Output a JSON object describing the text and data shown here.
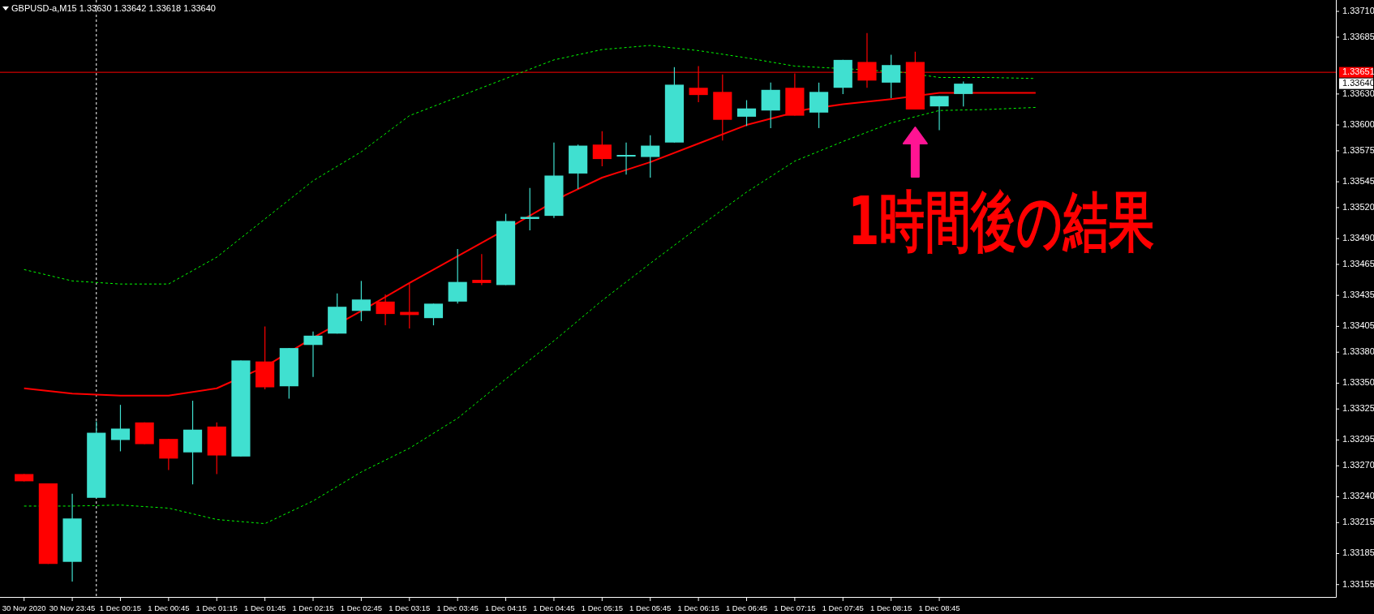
{
  "chart_data": {
    "type": "candlestick",
    "title": "GBPUSD-a,M15  1.33630 1.33642 1.33618 1.33640",
    "x": [
      "2020-11-30T23:15",
      "2020-11-30T23:30",
      "2020-11-30T23:45",
      "2020-12-01T00:00",
      "2020-12-01T00:15",
      "2020-12-01T00:30",
      "2020-12-01T00:45",
      "2020-12-01T01:00",
      "2020-12-01T01:15",
      "2020-12-01T01:30",
      "2020-12-01T01:45",
      "2020-12-01T02:00",
      "2020-12-01T02:15",
      "2020-12-01T02:30",
      "2020-12-01T02:45",
      "2020-12-01T03:00",
      "2020-12-01T03:15",
      "2020-12-01T03:30",
      "2020-12-01T03:45",
      "2020-12-01T04:00",
      "2020-12-01T04:15",
      "2020-12-01T04:30",
      "2020-12-01T04:45",
      "2020-12-01T05:00",
      "2020-12-01T05:15",
      "2020-12-01T05:30",
      "2020-12-01T05:45",
      "2020-12-01T06:00",
      "2020-12-01T06:15",
      "2020-12-01T06:30",
      "2020-12-01T06:45",
      "2020-12-01T07:00",
      "2020-12-01T07:15",
      "2020-12-01T07:30",
      "2020-12-01T07:45",
      "2020-12-01T08:00",
      "2020-12-01T08:15",
      "2020-12-01T08:30",
      "2020-12-01T08:45",
      "2020-12-01T09:00"
    ],
    "ohlc": [
      [
        1.33262,
        1.33262,
        1.33255,
        1.33255
      ],
      [
        1.33253,
        1.33253,
        1.33175,
        1.33175
      ],
      [
        1.33177,
        1.33243,
        1.33158,
        1.33219
      ],
      [
        1.33239,
        1.33313,
        1.33239,
        1.33302
      ],
      [
        1.33295,
        1.33329,
        1.33284,
        1.33306
      ],
      [
        1.33312,
        1.33312,
        1.33291,
        1.33291
      ],
      [
        1.33296,
        1.33296,
        1.33266,
        1.33277
      ],
      [
        1.33283,
        1.33333,
        1.33252,
        1.33305
      ],
      [
        1.33308,
        1.33312,
        1.33262,
        1.3328
      ],
      [
        1.33279,
        1.33372,
        1.33279,
        1.33372
      ],
      [
        1.33371,
        1.33405,
        1.33344,
        1.33346
      ],
      [
        1.33347,
        1.33384,
        1.33335,
        1.33384
      ],
      [
        1.33387,
        1.334,
        1.33356,
        1.33396
      ],
      [
        1.33398,
        1.33437,
        1.33398,
        1.33424
      ],
      [
        1.3342,
        1.33449,
        1.3341,
        1.33431
      ],
      [
        1.33429,
        1.33436,
        1.33406,
        1.33417
      ],
      [
        1.33419,
        1.33447,
        1.33403,
        1.33416
      ],
      [
        1.33413,
        1.33427,
        1.33406,
        1.33427
      ],
      [
        1.33429,
        1.3348,
        1.33427,
        1.33448
      ],
      [
        1.3345,
        1.33475,
        1.33445,
        1.33447
      ],
      [
        1.33445,
        1.33514,
        1.33445,
        1.33507
      ],
      [
        1.33509,
        1.33539,
        1.33498,
        1.33511
      ],
      [
        1.33512,
        1.33583,
        1.3351,
        1.33551
      ],
      [
        1.33553,
        1.33581,
        1.33538,
        1.3358
      ],
      [
        1.33581,
        1.33594,
        1.3356,
        1.33567
      ],
      [
        1.3357,
        1.33583,
        1.33552,
        1.33571
      ],
      [
        1.33569,
        1.3359,
        1.33549,
        1.3358
      ],
      [
        1.33583,
        1.33656,
        1.33583,
        1.33639
      ],
      [
        1.33636,
        1.33657,
        1.33622,
        1.33629
      ],
      [
        1.33632,
        1.33649,
        1.33585,
        1.33605
      ],
      [
        1.33608,
        1.33624,
        1.33599,
        1.33616
      ],
      [
        1.33614,
        1.33641,
        1.33597,
        1.33634
      ],
      [
        1.33636,
        1.3365,
        1.33609,
        1.33609
      ],
      [
        1.33612,
        1.33641,
        1.33597,
        1.33632
      ],
      [
        1.33636,
        1.33663,
        1.3363,
        1.33663
      ],
      [
        1.33661,
        1.33689,
        1.33636,
        1.33643
      ],
      [
        1.33641,
        1.33668,
        1.33626,
        1.33658
      ],
      [
        1.33661,
        1.33671,
        1.33615,
        1.33615
      ],
      [
        1.33618,
        1.33628,
        1.33595,
        1.33628
      ],
      [
        1.3363,
        1.33642,
        1.33618,
        1.3364
      ]
    ],
    "colors": [
      "#ff0000",
      "#ff0000",
      "#40e0d0",
      "#40e0d0",
      "#40e0d0",
      "#ff0000",
      "#ff0000",
      "#40e0d0",
      "#ff0000",
      "#40e0d0",
      "#ff0000",
      "#40e0d0",
      "#40e0d0",
      "#40e0d0",
      "#40e0d0",
      "#ff0000",
      "#ff0000",
      "#40e0d0",
      "#40e0d0",
      "#ff0000",
      "#40e0d0",
      "#40e0d0",
      "#40e0d0",
      "#40e0d0",
      "#ff0000",
      "#40e0d0",
      "#40e0d0",
      "#40e0d0",
      "#ff0000",
      "#ff0000",
      "#40e0d0",
      "#40e0d0",
      "#ff0000",
      "#40e0d0",
      "#40e0d0",
      "#ff0000",
      "#40e0d0",
      "#ff0000",
      "#40e0d0",
      "#40e0d0"
    ],
    "series": [
      {
        "type": "line",
        "color": "#00ff00",
        "line_style": "dashed",
        "x": [
          "2020-11-30T23:15",
          "2020-11-30T23:45",
          "2020-12-01T00:15",
          "2020-12-01T00:45",
          "2020-12-01T01:15",
          "2020-12-01T01:45",
          "2020-12-01T02:15",
          "2020-12-01T02:45",
          "2020-12-01T03:15",
          "2020-12-01T03:45",
          "2020-12-01T04:15",
          "2020-12-01T04:45",
          "2020-12-01T05:15",
          "2020-12-01T05:45",
          "2020-12-01T06:15",
          "2020-12-01T06:45",
          "2020-12-01T07:15",
          "2020-12-01T07:52",
          "2020-12-01T08:22",
          "2020-12-01T08:45",
          "2020-12-01T09:15",
          "2020-12-01T09:45"
        ],
        "values": [
          1.3346,
          1.33449,
          1.33446,
          1.33446,
          1.33472,
          1.33509,
          1.33546,
          1.33574,
          1.33609,
          1.33627,
          1.33645,
          1.33663,
          1.33673,
          1.33677,
          1.33672,
          1.33665,
          1.33657,
          1.33654,
          1.33651,
          1.33646,
          1.33646,
          1.33645
        ]
      },
      {
        "type": "line",
        "color": "#00ff00",
        "line_style": "dashed",
        "x": [
          "2020-11-30T23:15",
          "2020-11-30T23:45",
          "2020-12-01T00:15",
          "2020-12-01T00:45",
          "2020-12-01T01:15",
          "2020-12-01T01:45",
          "2020-12-01T02:15",
          "2020-12-01T02:45",
          "2020-12-01T03:15",
          "2020-12-01T03:45",
          "2020-12-01T04:15",
          "2020-12-01T04:45",
          "2020-12-01T05:15",
          "2020-12-01T05:45",
          "2020-12-01T06:15",
          "2020-12-01T06:45",
          "2020-12-01T07:15",
          "2020-12-01T07:45",
          "2020-12-01T08:15",
          "2020-12-01T08:45",
          "2020-12-01T09:15",
          "2020-12-01T09:45"
        ],
        "values": [
          1.33231,
          1.33231,
          1.33232,
          1.33229,
          1.33218,
          1.33214,
          1.33236,
          1.33264,
          1.33287,
          1.33316,
          1.33354,
          1.33391,
          1.3343,
          1.33466,
          1.33501,
          1.33535,
          1.33565,
          1.33584,
          1.33602,
          1.33614,
          1.33615,
          1.33617
        ]
      },
      {
        "type": "line",
        "color": "#ff0000",
        "line_style": "solid",
        "x": [
          "2020-11-30T23:15",
          "2020-11-30T23:45",
          "2020-12-01T00:15",
          "2020-12-01T00:45",
          "2020-12-01T01:15",
          "2020-12-01T01:45",
          "2020-12-01T02:15",
          "2020-12-01T02:45",
          "2020-12-01T03:15",
          "2020-12-01T03:45",
          "2020-12-01T04:22",
          "2020-12-01T04:52",
          "2020-12-01T05:15",
          "2020-12-01T05:45",
          "2020-12-01T06:15",
          "2020-12-01T06:45",
          "2020-12-01T07:22",
          "2020-12-01T07:45",
          "2020-12-01T08:15",
          "2020-12-01T08:45",
          "2020-12-01T09:15",
          "2020-12-01T09:45"
        ],
        "values": [
          1.33345,
          1.3334,
          1.33338,
          1.33338,
          1.33345,
          1.33366,
          1.33394,
          1.3342,
          1.33447,
          1.33473,
          1.33505,
          1.33532,
          1.33549,
          1.33564,
          1.33582,
          1.336,
          1.33615,
          1.3362,
          1.33625,
          1.33631,
          1.33631,
          1.33631
        ]
      }
    ],
    "xlim": [
      "2020-11-30T23:00",
      "2020-12-01T12:52"
    ],
    "xticks": [
      {
        "value": "2020-11-30T23:15",
        "label": "30 Nov 2020"
      },
      {
        "value": "2020-11-30T23:45",
        "label": "30 Nov 23:45"
      },
      {
        "value": "2020-12-01T00:15",
        "label": "1 Dec 00:15"
      },
      {
        "value": "2020-12-01T00:45",
        "label": "1 Dec 00:45"
      },
      {
        "value": "2020-12-01T01:15",
        "label": "1 Dec 01:15"
      },
      {
        "value": "2020-12-01T01:45",
        "label": "1 Dec 01:45"
      },
      {
        "value": "2020-12-01T02:15",
        "label": "1 Dec 02:15"
      },
      {
        "value": "2020-12-01T02:45",
        "label": "1 Dec 02:45"
      },
      {
        "value": "2020-12-01T03:15",
        "label": "1 Dec 03:15"
      },
      {
        "value": "2020-12-01T03:45",
        "label": "1 Dec 03:45"
      },
      {
        "value": "2020-12-01T04:15",
        "label": "1 Dec 04:15"
      },
      {
        "value": "2020-12-01T04:45",
        "label": "1 Dec 04:45"
      },
      {
        "value": "2020-12-01T05:15",
        "label": "1 Dec 05:15"
      },
      {
        "value": "2020-12-01T05:45",
        "label": "1 Dec 05:45"
      },
      {
        "value": "2020-12-01T06:15",
        "label": "1 Dec 06:15"
      },
      {
        "value": "2020-12-01T06:45",
        "label": "1 Dec 06:45"
      },
      {
        "value": "2020-12-01T07:15",
        "label": "1 Dec 07:15"
      },
      {
        "value": "2020-12-01T07:45",
        "label": "1 Dec 07:45"
      },
      {
        "value": "2020-12-01T08:15",
        "label": "1 Dec 08:15"
      },
      {
        "value": "2020-12-01T08:45",
        "label": "1 Dec 08:45"
      }
    ],
    "ylim": [
      1.33143,
      1.33721
    ],
    "yticks": [
      {
        "value": 1.3371,
        "label": "1.33710"
      },
      {
        "value": 1.33685,
        "label": "1.33685"
      },
      {
        "value": 1.3363,
        "label": "1.33630"
      },
      {
        "value": 1.336,
        "label": "1.33600"
      },
      {
        "value": 1.33575,
        "label": "1.33575"
      },
      {
        "value": 1.33545,
        "label": "1.33545"
      },
      {
        "value": 1.3352,
        "label": "1.33520"
      },
      {
        "value": 1.3349,
        "label": "1.33490"
      },
      {
        "value": 1.33465,
        "label": "1.33465"
      },
      {
        "value": 1.33435,
        "label": "1.33435"
      },
      {
        "value": 1.33405,
        "label": "1.33405"
      },
      {
        "value": 1.3338,
        "label": "1.33380"
      },
      {
        "value": 1.3335,
        "label": "1.33350"
      },
      {
        "value": 1.33325,
        "label": "1.33325"
      },
      {
        "value": 1.33295,
        "label": "1.33295"
      },
      {
        "value": 1.3327,
        "label": "1.33270"
      },
      {
        "value": 1.3324,
        "label": "1.33240"
      },
      {
        "value": 1.33215,
        "label": "1.33215"
      },
      {
        "value": 1.33185,
        "label": "1.33185"
      },
      {
        "value": 1.33155,
        "label": "1.33155"
      }
    ],
    "ref_lines": [
      {
        "axis": "y",
        "value": 1.33651,
        "label": "1.33651",
        "color": "#ff0000",
        "line_style": "solid"
      },
      {
        "axis": "x",
        "value": "2020-12-01T00:00",
        "color": "#ffffff",
        "line_style": "dashed"
      }
    ],
    "annotations": [
      "1.33640",
      {
        "text": "1時間後の結果",
        "x": "2020-12-01T08:30",
        "y": 1.33615
      }
    ]
  }
}
